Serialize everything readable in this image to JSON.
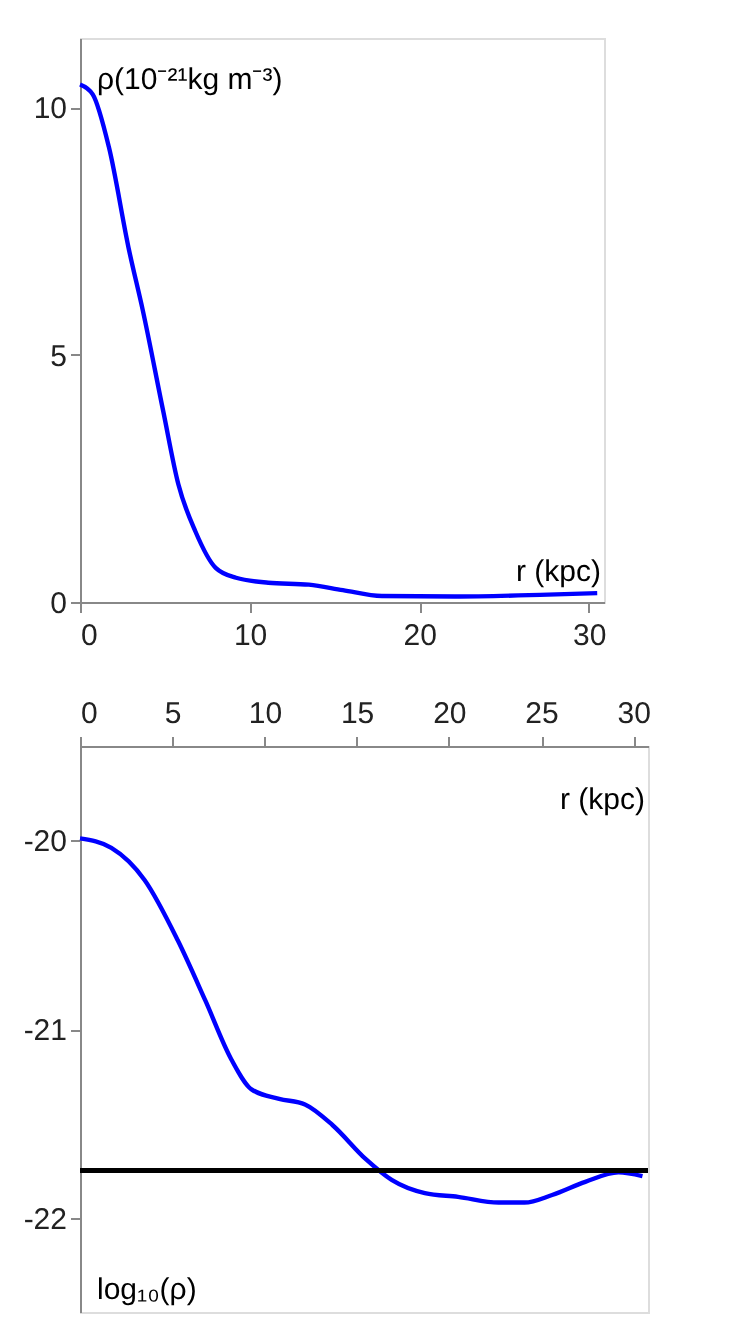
{
  "chart_data": [
    {
      "type": "line",
      "xlabel": "r (kpc)",
      "ylabel": "ρ(10⁻²¹kg m⁻³)",
      "xlim": [
        0,
        30.9
      ],
      "xticks": [
        0,
        10,
        20,
        30
      ],
      "ylim": [
        0,
        11.4
      ],
      "yticks": [
        0,
        5,
        10
      ],
      "grid": false,
      "line_style": "solid",
      "marker": "none",
      "series": [
        {
          "color": "#0000ff",
          "x": [
            0,
            0.75,
            1.7,
            2.9,
            3.7,
            4.9,
            5.8,
            6.8,
            8.0,
            9.2,
            11.1,
            13.5,
            15.5,
            17.8,
            22.1,
            27.6,
            30.5
          ],
          "values": [
            10.46,
            10.26,
            9.2,
            7.1,
            5.9,
            3.87,
            2.38,
            1.43,
            0.69,
            0.49,
            0.39,
            0.35,
            0.24,
            0.12,
            0.11,
            0.15,
            0.18
          ]
        }
      ]
    },
    {
      "type": "line",
      "xlabel": "r  (kpc)",
      "ylabel": "log₁₀(ρ)",
      "xlim": [
        0,
        30.8
      ],
      "xticks": [
        0,
        5,
        10,
        15,
        20,
        25,
        30
      ],
      "ylim": [
        -22.5,
        -19.5
      ],
      "yticks": [
        -22,
        -21,
        -20
      ],
      "grid": false,
      "line_style": "solid",
      "marker": "none",
      "ref_lines": [
        {
          "axis": "y",
          "value": -21.75,
          "color": "#000000"
        }
      ],
      "series": [
        {
          "color": "#0000ff",
          "x": [
            0,
            1.7,
            3.5,
            5.3,
            6.8,
            8.2,
            9.3,
            10.8,
            12.2,
            13.7,
            15.5,
            16.9,
            18.7,
            20.5,
            22.7,
            24.1,
            25.6,
            27.4,
            29.2,
            30.5
          ],
          "values": [
            -19.99,
            -20.04,
            -20.21,
            -20.53,
            -20.85,
            -21.16,
            -21.32,
            -21.37,
            -21.4,
            -21.51,
            -21.69,
            -21.8,
            -21.87,
            -21.89,
            -21.92,
            -21.92,
            -21.88,
            -21.81,
            -21.76,
            -21.78
          ]
        }
      ]
    }
  ]
}
